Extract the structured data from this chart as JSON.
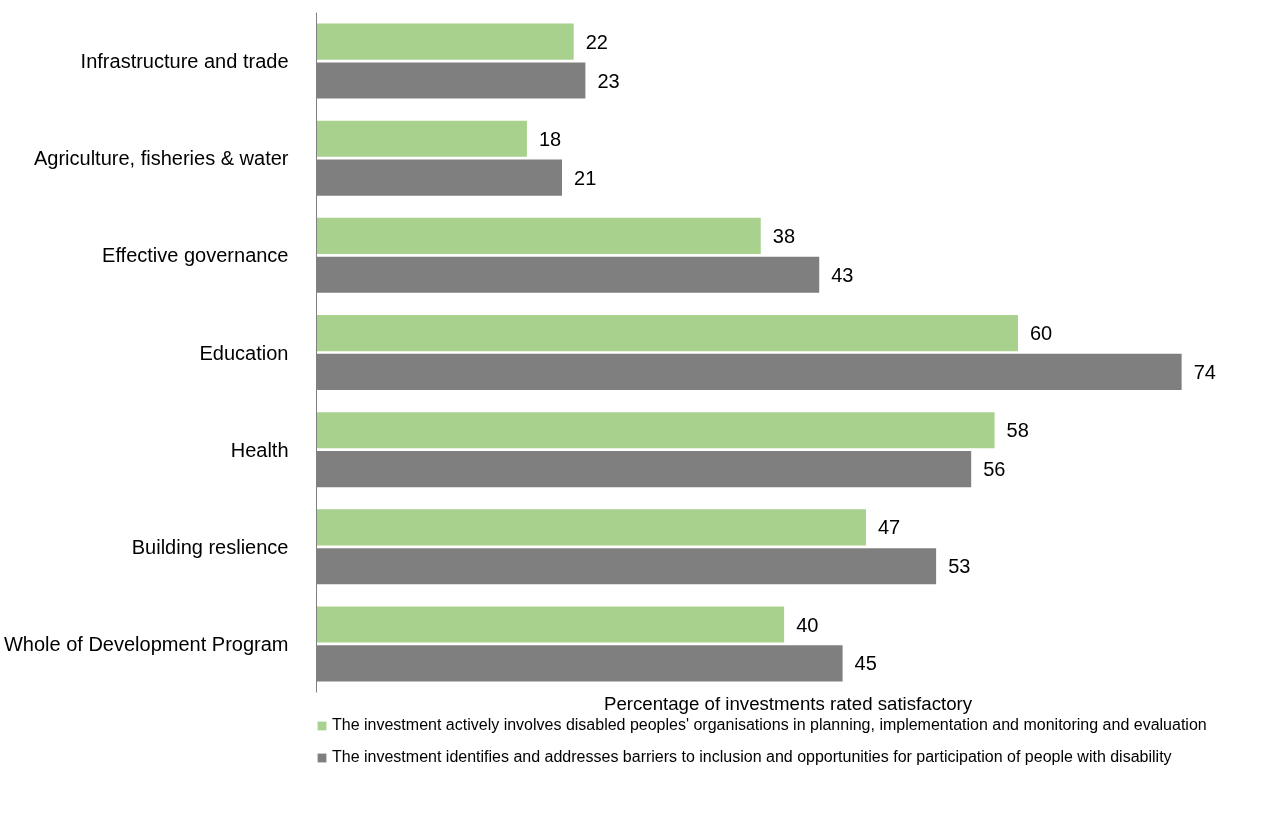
{
  "chart_data": {
    "type": "bar",
    "orientation": "horizontal",
    "xlabel": "Percentage of investments rated satisfactory",
    "categories": [
      "Infrastructure and trade",
      "Agriculture, fisheries & water",
      "Effective governance",
      "Education",
      "Health",
      "Building reslience",
      "Whole of Development Program"
    ],
    "series": [
      {
        "name": "The investment actively involves disabled peoples' organisations in planning, implementation and monitoring and evaluation",
        "color": "#a9d18e",
        "values": [
          22,
          18,
          38,
          60,
          58,
          47,
          40
        ]
      },
      {
        "name": "The investment identifies and addresses barriers to inclusion and opportunities for participation of people with disability",
        "color": "#7f7f7f",
        "values": [
          23,
          21,
          43,
          74,
          56,
          53,
          45
        ]
      }
    ],
    "data_labels": true,
    "legend": "bottom",
    "grid": false
  }
}
